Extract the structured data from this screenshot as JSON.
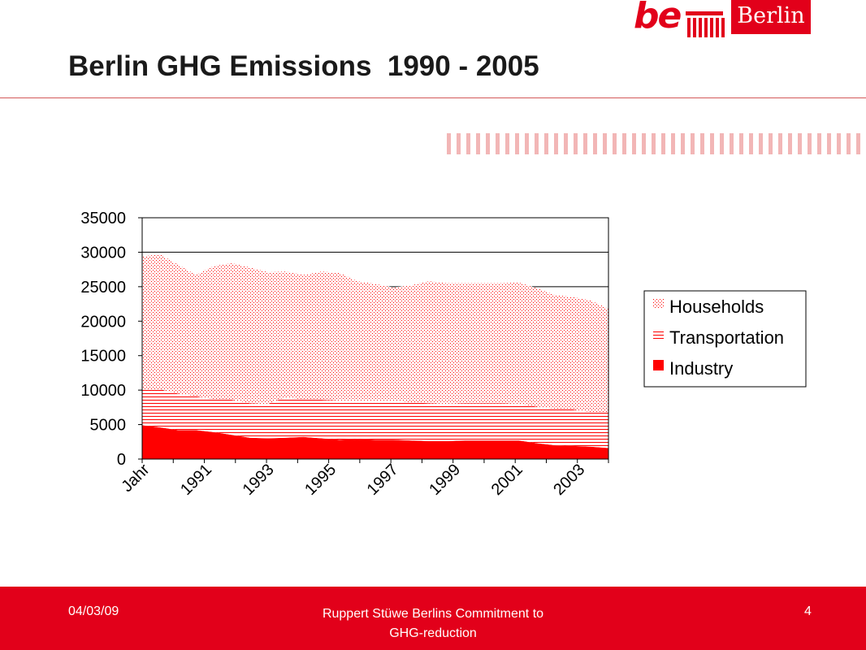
{
  "logo": {
    "be": "be",
    "berlin": "Berlin"
  },
  "title": "Berlin GHG Emissions  1990 - 2005",
  "footer": {
    "date": "04/03/09",
    "caption_line1": "Ruppert Stüwe Berlins Commitment to",
    "caption_line2": "GHG-reduction",
    "page": "4"
  },
  "colors": {
    "brand_red": "#e2001a",
    "industry": "#ff0000",
    "transportation_lines": "#ff0000",
    "households_dots": "#ff0000"
  },
  "chart_data": {
    "type": "area",
    "stacked": true,
    "x_tick_labels": [
      "Jahr",
      "1991",
      "1993",
      "1995",
      "1997",
      "1999",
      "2001",
      "2003"
    ],
    "ylim": [
      0,
      35000
    ],
    "yticks": [
      0,
      5000,
      10000,
      15000,
      20000,
      25000,
      30000,
      35000
    ],
    "grid": "horizontal",
    "legend_position": "right",
    "series": [
      {
        "name": "Industry",
        "values": [
          4900,
          4600,
          4200,
          4200,
          3900,
          3500,
          3100,
          3000,
          3100,
          3200,
          3000,
          2800,
          2900,
          2800,
          2800,
          2700,
          2600,
          2600,
          2700,
          2700,
          2700,
          2700,
          2300,
          2000,
          1900,
          1800,
          1600
        ]
      },
      {
        "name": "Transportation",
        "values": [
          5200,
          5500,
          5300,
          4900,
          4800,
          5100,
          5000,
          5000,
          5900,
          5400,
          5600,
          5700,
          5600,
          5700,
          5700,
          5500,
          5500,
          5400,
          5400,
          5400,
          5400,
          5300,
          5300,
          5300,
          5300,
          5000,
          5200
        ]
      },
      {
        "name": "Households",
        "values": [
          19300,
          19600,
          18700,
          17600,
          19300,
          19800,
          19700,
          19100,
          18200,
          18100,
          18600,
          18500,
          17300,
          16900,
          16400,
          17000,
          17700,
          17500,
          17400,
          17400,
          17400,
          17600,
          17200,
          16500,
          16300,
          16200,
          15000
        ]
      }
    ]
  }
}
